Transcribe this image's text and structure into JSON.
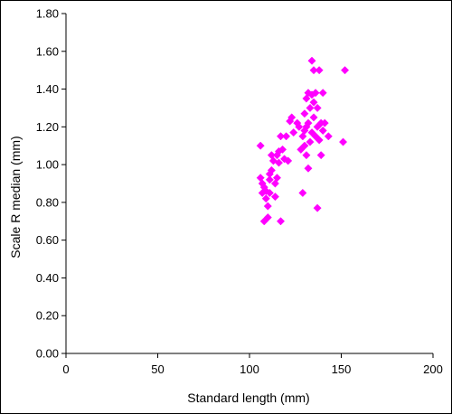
{
  "chart_data": {
    "type": "scatter",
    "xlabel": "Standard length (mm)",
    "ylabel": "Scale R median (mm)",
    "xlim": [
      0,
      200
    ],
    "ylim": [
      0,
      1.8
    ],
    "x_ticks": [
      "0",
      "50",
      "100",
      "150",
      "200"
    ],
    "y_ticks": [
      "0.00",
      "0.20",
      "0.40",
      "0.60",
      "0.80",
      "1.00",
      "1.20",
      "1.40",
      "1.60",
      "1.80"
    ],
    "grid": false,
    "legend": "none",
    "marker": "diamond",
    "marker_color": "#ff00ff",
    "series": [
      {
        "points": [
          [
            106,
            1.1
          ],
          [
            106,
            0.93
          ],
          [
            107,
            0.9
          ],
          [
            107,
            0.85
          ],
          [
            108,
            0.88
          ],
          [
            108,
            0.7
          ],
          [
            109,
            0.82
          ],
          [
            109,
            0.86
          ],
          [
            110,
            0.78
          ],
          [
            110,
            0.72
          ],
          [
            111,
            0.95
          ],
          [
            111,
            0.92
          ],
          [
            111,
            0.85
          ],
          [
            112,
            0.97
          ],
          [
            112,
            1.05
          ],
          [
            113,
            1.02
          ],
          [
            114,
            0.9
          ],
          [
            114,
            0.83
          ],
          [
            115,
            1.05
          ],
          [
            115,
            0.93
          ],
          [
            116,
            1.07
          ],
          [
            116,
            1.01
          ],
          [
            117,
            1.15
          ],
          [
            117,
            0.7
          ],
          [
            118,
            1.08
          ],
          [
            119,
            1.03
          ],
          [
            120,
            1.15
          ],
          [
            121,
            1.02
          ],
          [
            122,
            1.23
          ],
          [
            123,
            1.25
          ],
          [
            124,
            1.17
          ],
          [
            126,
            1.22
          ],
          [
            127,
            1.2
          ],
          [
            128,
            1.08
          ],
          [
            129,
            0.85
          ],
          [
            129,
            1.15
          ],
          [
            130,
            1.18
          ],
          [
            130,
            1.27
          ],
          [
            130,
            1.1
          ],
          [
            131,
            1.35
          ],
          [
            131,
            1.2
          ],
          [
            131,
            1.05
          ],
          [
            132,
            1.38
          ],
          [
            132,
            1.22
          ],
          [
            132,
            0.98
          ],
          [
            133,
            1.12
          ],
          [
            133,
            1.3
          ],
          [
            134,
            1.55
          ],
          [
            134,
            1.37
          ],
          [
            134,
            1.17
          ],
          [
            135,
            1.5
          ],
          [
            135,
            1.33
          ],
          [
            135,
            1.25
          ],
          [
            136,
            1.38
          ],
          [
            136,
            1.15
          ],
          [
            137,
            0.77
          ],
          [
            137,
            1.3
          ],
          [
            137,
            1.2
          ],
          [
            138,
            1.5
          ],
          [
            138,
            1.13
          ],
          [
            139,
            1.05
          ],
          [
            139,
            1.22
          ],
          [
            140,
            1.38
          ],
          [
            140,
            1.18
          ],
          [
            141,
            1.22
          ],
          [
            143,
            1.15
          ],
          [
            151,
            1.12
          ],
          [
            152,
            1.5
          ]
        ]
      }
    ]
  }
}
